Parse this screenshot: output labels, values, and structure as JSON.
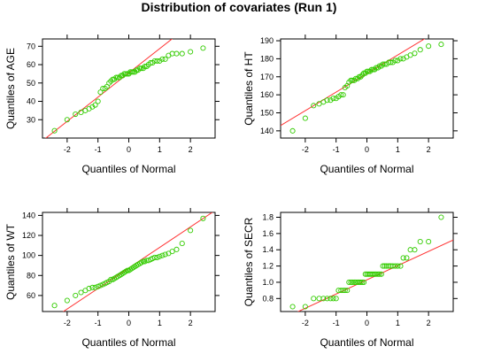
{
  "title": "Distribution of covariates (Run 1)",
  "colors": {
    "points": "#33cc00",
    "line": "#ff3333",
    "axis": "#000000"
  },
  "chart_data": [
    {
      "type": "scatter",
      "xlabel": "Quantiles of Normal",
      "ylabel": "Quantiles of AGE",
      "xlim": [
        -2.8,
        2.8
      ],
      "ylim": [
        20,
        74
      ],
      "xticks": [
        "-2",
        "-1",
        "0",
        "1",
        "2"
      ],
      "yticks": [
        "30",
        "40",
        "50",
        "60",
        "70"
      ],
      "ref_line": {
        "slope": 13.2,
        "intercept": 55.5
      },
      "points": {
        "x": [
          -2.41,
          -2.0,
          -1.73,
          -1.55,
          -1.41,
          -1.29,
          -1.18,
          -1.09,
          -1.0,
          -0.92,
          -0.84,
          -0.77,
          -0.71,
          -0.64,
          -0.58,
          -0.52,
          -0.47,
          -0.41,
          -0.36,
          -0.3,
          -0.25,
          -0.2,
          -0.15,
          -0.1,
          -0.05,
          0.0,
          0.05,
          0.1,
          0.15,
          0.2,
          0.25,
          0.3,
          0.36,
          0.41,
          0.47,
          0.52,
          0.58,
          0.64,
          0.71,
          0.77,
          0.84,
          0.92,
          1.0,
          1.09,
          1.18,
          1.29,
          1.41,
          1.55,
          1.73,
          2.0,
          2.41
        ],
        "y": [
          24,
          30,
          33,
          34,
          35,
          36,
          37,
          38,
          40,
          45,
          47,
          47,
          48,
          50,
          51,
          52,
          52,
          53,
          53,
          53,
          54,
          54,
          55,
          55,
          55,
          55,
          56,
          56,
          56,
          56,
          57,
          57,
          58,
          58,
          58,
          59,
          59,
          60,
          61,
          61,
          62,
          62,
          62,
          63,
          63,
          65,
          66,
          66,
          66,
          67,
          69
        ]
      }
    },
    {
      "type": "scatter",
      "xlabel": "Quantiles of Normal",
      "ylabel": "Quantiles of HT",
      "xlim": [
        -2.8,
        2.8
      ],
      "ylim": [
        136,
        191
      ],
      "xticks": [
        "-2",
        "-1",
        "0",
        "1",
        "2"
      ],
      "yticks": [
        "140",
        "150",
        "160",
        "170",
        "180",
        "190"
      ],
      "ref_line": {
        "slope": 10.3,
        "intercept": 171.8
      },
      "points": {
        "x": [
          -2.41,
          -2.0,
          -1.73,
          -1.55,
          -1.41,
          -1.29,
          -1.18,
          -1.09,
          -1.0,
          -0.92,
          -0.84,
          -0.77,
          -0.71,
          -0.64,
          -0.58,
          -0.52,
          -0.47,
          -0.41,
          -0.36,
          -0.3,
          -0.25,
          -0.2,
          -0.15,
          -0.1,
          -0.05,
          0.0,
          0.05,
          0.1,
          0.15,
          0.2,
          0.25,
          0.3,
          0.36,
          0.41,
          0.47,
          0.52,
          0.58,
          0.64,
          0.71,
          0.77,
          0.84,
          0.92,
          1.0,
          1.09,
          1.18,
          1.29,
          1.41,
          1.55,
          1.73,
          2.0,
          2.41
        ],
        "y": [
          140,
          147,
          154,
          155,
          156,
          157,
          157,
          158,
          158,
          159,
          160,
          160,
          164,
          165,
          167,
          168,
          168,
          168,
          169,
          169,
          170,
          170,
          171,
          172,
          172,
          173,
          173,
          173,
          174,
          174,
          174,
          175,
          175,
          176,
          176,
          177,
          177,
          177,
          178,
          178,
          178,
          179,
          179,
          180,
          180,
          181,
          182,
          183,
          185,
          187,
          188
        ]
      }
    },
    {
      "type": "scatter",
      "xlabel": "Quantiles of Normal",
      "ylabel": "Quantiles of WT",
      "xlim": [
        -2.8,
        2.8
      ],
      "ylim": [
        44,
        143
      ],
      "xticks": [
        "-2",
        "-1",
        "0",
        "1",
        "2"
      ],
      "yticks": [
        "60",
        "80",
        "100",
        "120",
        "140"
      ],
      "ref_line": {
        "slope": 20.5,
        "intercept": 87.5
      },
      "points": {
        "x": [
          -2.41,
          -2.0,
          -1.73,
          -1.55,
          -1.41,
          -1.29,
          -1.18,
          -1.09,
          -1.0,
          -0.92,
          -0.84,
          -0.77,
          -0.71,
          -0.64,
          -0.58,
          -0.52,
          -0.47,
          -0.41,
          -0.36,
          -0.3,
          -0.25,
          -0.2,
          -0.15,
          -0.1,
          -0.05,
          0.0,
          0.05,
          0.1,
          0.15,
          0.2,
          0.25,
          0.3,
          0.36,
          0.41,
          0.47,
          0.52,
          0.58,
          0.64,
          0.71,
          0.77,
          0.84,
          0.92,
          1.0,
          1.09,
          1.18,
          1.29,
          1.41,
          1.55,
          1.73,
          2.0,
          2.41
        ],
        "y": [
          50,
          55,
          60,
          63,
          65,
          67,
          68,
          68,
          69,
          70,
          71,
          72,
          73,
          74,
          76,
          76,
          77,
          78,
          79,
          80,
          81,
          82,
          83,
          84,
          85,
          85,
          86,
          87,
          88,
          89,
          90,
          91,
          92,
          93,
          94,
          94,
          95,
          95,
          96,
          97,
          98,
          98,
          99,
          100,
          101,
          102,
          104,
          106,
          112,
          125,
          137
        ]
      }
    },
    {
      "type": "scatter",
      "xlabel": "Quantiles of Normal",
      "ylabel": "Quantiles of SECR",
      "xlim": [
        -2.8,
        2.8
      ],
      "ylim": [
        0.64,
        1.86
      ],
      "xticks": [
        "-2",
        "-1",
        "0",
        "1",
        "2"
      ],
      "yticks": [
        "0.8",
        "1.0",
        "1.2",
        "1.4",
        "1.6",
        "1.8"
      ],
      "ref_line": {
        "slope": 0.175,
        "intercept": 1.03
      },
      "points": {
        "x": [
          -2.41,
          -2.0,
          -1.73,
          -1.55,
          -1.41,
          -1.29,
          -1.18,
          -1.09,
          -1.0,
          -0.92,
          -0.84,
          -0.77,
          -0.71,
          -0.64,
          -0.58,
          -0.52,
          -0.47,
          -0.41,
          -0.36,
          -0.3,
          -0.25,
          -0.2,
          -0.15,
          -0.1,
          -0.05,
          0.0,
          0.05,
          0.1,
          0.15,
          0.2,
          0.25,
          0.3,
          0.36,
          0.41,
          0.47,
          0.52,
          0.58,
          0.64,
          0.71,
          0.77,
          0.84,
          0.92,
          1.0,
          1.09,
          1.18,
          1.29,
          1.41,
          1.55,
          1.73,
          2.0,
          2.41
        ],
        "y": [
          0.7,
          0.7,
          0.8,
          0.8,
          0.8,
          0.8,
          0.8,
          0.8,
          0.8,
          0.9,
          0.9,
          0.9,
          0.9,
          0.9,
          1.0,
          1.0,
          1.0,
          1.0,
          1.0,
          1.0,
          1.0,
          1.0,
          1.0,
          1.0,
          1.1,
          1.1,
          1.1,
          1.1,
          1.1,
          1.1,
          1.1,
          1.1,
          1.1,
          1.1,
          1.1,
          1.2,
          1.2,
          1.2,
          1.2,
          1.2,
          1.2,
          1.2,
          1.2,
          1.2,
          1.3,
          1.3,
          1.4,
          1.4,
          1.5,
          1.5,
          1.8
        ]
      }
    }
  ]
}
